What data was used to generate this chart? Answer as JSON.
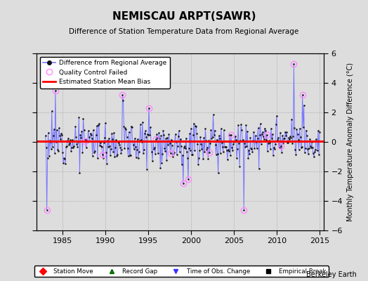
{
  "title": "NEMISCAU ARPT(SAWR)",
  "subtitle": "Difference of Station Temperature Data from Regional Average",
  "ylabel": "Monthly Temperature Anomaly Difference (°C)",
  "credit": "Berkeley Earth",
  "xlim": [
    1982.0,
    2015.5
  ],
  "ylim": [
    -6,
    6
  ],
  "yticks": [
    -6,
    -4,
    -2,
    0,
    2,
    4,
    6
  ],
  "xticks": [
    1985,
    1990,
    1995,
    2000,
    2005,
    2010,
    2015
  ],
  "bias_level": 0.05,
  "line_color": "#7777ff",
  "dot_color": "#111111",
  "bias_color": "#ff0000",
  "qc_color": "#ff88ff",
  "bg_color": "#dddddd",
  "seed": 12,
  "n_months": 385,
  "start_year": 1983.0
}
